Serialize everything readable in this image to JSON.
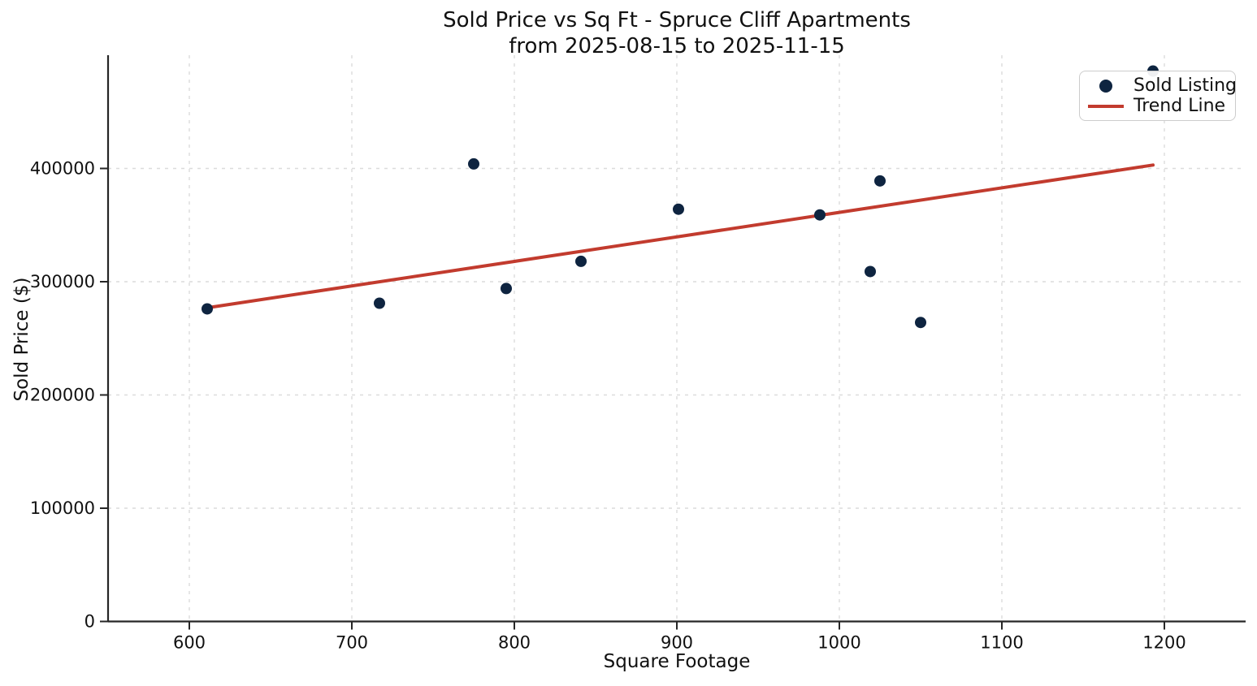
{
  "figure": {
    "background": "#ffffff"
  },
  "chart_data": {
    "type": "scatter",
    "title": "Sold Price vs Sq Ft - Spruce Cliff Apartments",
    "subtitle": "from 2025-08-15 to 2025-11-15",
    "xlabel": "Square Footage",
    "ylabel": "Sold Price ($)",
    "xlim": [
      550,
      1250
    ],
    "ylim": [
      0,
      500000
    ],
    "x_ticks": [
      600,
      700,
      800,
      900,
      1000,
      1100,
      1200
    ],
    "y_ticks": [
      0,
      100000,
      200000,
      300000,
      400000
    ],
    "grid": {
      "visible": true,
      "style": "dashed",
      "color": "#dcdcdc"
    },
    "colors": {
      "marker": "#0e2440",
      "trend": "#c23b2e",
      "axis": "#262626",
      "text": "#111111"
    },
    "series": [
      {
        "name": "Sold Listing",
        "type": "scatter",
        "color": "#0e2440",
        "points": [
          [
            611,
            276000
          ],
          [
            717,
            281000
          ],
          [
            775,
            404000
          ],
          [
            795,
            294000
          ],
          [
            841,
            318000
          ],
          [
            901,
            364000
          ],
          [
            988,
            359000
          ],
          [
            1019,
            309000
          ],
          [
            1025,
            389000
          ],
          [
            1050,
            264000
          ],
          [
            1193,
            486000
          ]
        ]
      },
      {
        "name": "Trend Line",
        "type": "line",
        "color": "#c23b2e",
        "points": [
          [
            611,
            277000
          ],
          [
            1193,
            403000
          ]
        ]
      }
    ],
    "legend": {
      "position": "upper-right",
      "entries": [
        {
          "label": "Sold Listing",
          "marker": "dot"
        },
        {
          "label": "Trend Line",
          "marker": "line"
        }
      ]
    }
  }
}
